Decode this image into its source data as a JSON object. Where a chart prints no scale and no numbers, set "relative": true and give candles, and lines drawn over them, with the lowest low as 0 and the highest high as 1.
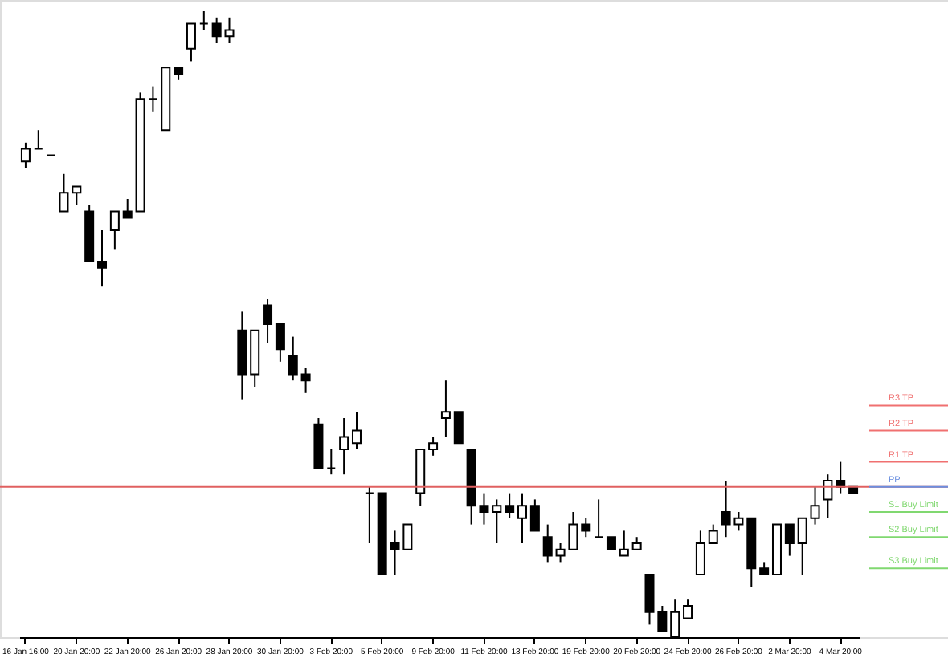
{
  "chart_data": {
    "type": "candlestick",
    "relative": true,
    "tick_labels": "x",
    "categories": [
      "16 Jan 16:00",
      null,
      null,
      null,
      "20 Jan 20:00",
      null,
      null,
      null,
      "22 Jan 20:00",
      null,
      null,
      null,
      "26 Jan 20:00",
      null,
      null,
      null,
      "28 Jan 20:00",
      null,
      null,
      null,
      "30 Jan 20:00",
      null,
      null,
      null,
      "3 Feb 20:00",
      null,
      null,
      null,
      "5 Feb 20:00",
      null,
      null,
      null,
      "9 Feb 20:00",
      null,
      null,
      null,
      "11 Feb 20:00",
      null,
      null,
      null,
      "13 Feb 20:00",
      null,
      null,
      null,
      "19 Feb 20:00",
      null,
      null,
      null,
      "20 Feb 20:00",
      null,
      null,
      null,
      "24 Feb 20:00",
      null,
      null,
      null,
      "26 Feb 20:00",
      null,
      null,
      null,
      "2 Mar 20:00",
      null,
      null,
      null,
      "4 Mar 20:00",
      null
    ],
    "ohlc": [
      [
        0.76,
        0.79,
        0.75,
        0.78
      ],
      [
        0.78,
        0.81,
        0.78,
        0.78
      ],
      [
        0.77,
        0.77,
        0.77,
        0.77
      ],
      [
        0.68,
        0.74,
        0.68,
        0.71
      ],
      [
        0.71,
        0.72,
        0.69,
        0.72
      ],
      [
        0.68,
        0.69,
        0.6,
        0.6
      ],
      [
        0.6,
        0.65,
        0.56,
        0.59
      ],
      [
        0.65,
        0.68,
        0.62,
        0.68
      ],
      [
        0.68,
        0.7,
        0.67,
        0.67
      ],
      [
        0.68,
        0.87,
        0.68,
        0.86
      ],
      [
        0.86,
        0.88,
        0.84,
        0.86
      ],
      [
        0.81,
        0.91,
        0.81,
        0.91
      ],
      [
        0.91,
        0.91,
        0.89,
        0.9
      ],
      [
        0.94,
        0.98,
        0.92,
        0.98
      ],
      [
        0.98,
        1.0,
        0.97,
        0.98
      ],
      [
        0.98,
        0.99,
        0.95,
        0.96
      ],
      [
        0.96,
        0.99,
        0.95,
        0.97
      ],
      [
        0.49,
        0.52,
        0.38,
        0.42
      ],
      [
        0.42,
        0.49,
        0.4,
        0.49
      ],
      [
        0.53,
        0.54,
        0.47,
        0.5
      ],
      [
        0.5,
        0.5,
        0.44,
        0.46
      ],
      [
        0.45,
        0.48,
        0.41,
        0.42
      ],
      [
        0.42,
        0.43,
        0.39,
        0.41
      ],
      [
        0.34,
        0.35,
        0.27,
        0.27
      ],
      [
        0.27,
        0.3,
        0.26,
        0.27
      ],
      [
        0.3,
        0.35,
        0.26,
        0.32
      ],
      [
        0.31,
        0.36,
        0.3,
        0.33
      ],
      [
        0.23,
        0.24,
        0.15,
        0.23
      ],
      [
        0.23,
        0.23,
        0.1,
        0.1
      ],
      [
        0.15,
        0.17,
        0.1,
        0.14
      ],
      [
        0.14,
        0.18,
        0.14,
        0.18
      ],
      [
        0.23,
        0.3,
        0.21,
        0.3
      ],
      [
        0.3,
        0.32,
        0.29,
        0.31
      ],
      [
        0.35,
        0.41,
        0.32,
        0.36
      ],
      [
        0.36,
        0.36,
        0.31,
        0.31
      ],
      [
        0.3,
        0.3,
        0.18,
        0.21
      ],
      [
        0.21,
        0.23,
        0.18,
        0.2
      ],
      [
        0.2,
        0.22,
        0.15,
        0.21
      ],
      [
        0.21,
        0.23,
        0.19,
        0.2
      ],
      [
        0.19,
        0.23,
        0.15,
        0.21
      ],
      [
        0.21,
        0.22,
        0.17,
        0.17
      ],
      [
        0.16,
        0.18,
        0.12,
        0.13
      ],
      [
        0.13,
        0.15,
        0.12,
        0.14
      ],
      [
        0.14,
        0.2,
        0.14,
        0.18
      ],
      [
        0.18,
        0.19,
        0.16,
        0.17
      ],
      [
        0.16,
        0.22,
        0.16,
        0.16
      ],
      [
        0.16,
        0.16,
        0.14,
        0.14
      ],
      [
        0.13,
        0.17,
        0.13,
        0.14
      ],
      [
        0.14,
        0.16,
        0.14,
        0.15
      ],
      [
        0.1,
        0.1,
        0.02,
        0.04
      ],
      [
        0.04,
        0.05,
        0.01,
        0.01
      ],
      [
        0.0,
        0.06,
        0.0,
        0.04
      ],
      [
        0.03,
        0.06,
        0.03,
        0.05
      ],
      [
        0.1,
        0.17,
        0.1,
        0.15
      ],
      [
        0.15,
        0.18,
        0.15,
        0.17
      ],
      [
        0.2,
        0.25,
        0.16,
        0.18
      ],
      [
        0.18,
        0.2,
        0.17,
        0.19
      ],
      [
        0.19,
        0.19,
        0.08,
        0.11
      ],
      [
        0.11,
        0.12,
        0.1,
        0.1
      ],
      [
        0.1,
        0.18,
        0.1,
        0.18
      ],
      [
        0.18,
        0.18,
        0.13,
        0.15
      ],
      [
        0.15,
        0.19,
        0.1,
        0.19
      ],
      [
        0.19,
        0.24,
        0.18,
        0.21
      ],
      [
        0.22,
        0.26,
        0.19,
        0.25
      ],
      [
        0.25,
        0.28,
        0.23,
        0.24
      ],
      [
        0.24,
        0.24,
        0.23,
        0.23
      ]
    ],
    "ref_lines": [
      {
        "axis": "y",
        "value": 0.24,
        "color": "#e06060"
      },
      {
        "axis": "y",
        "value": 0.37,
        "label": "R3 TP",
        "color": "#f07070"
      },
      {
        "axis": "y",
        "value": 0.33,
        "label": "R2 TP",
        "color": "#f07070"
      },
      {
        "axis": "y",
        "value": 0.28,
        "label": "R1 TP",
        "color": "#f07070"
      },
      {
        "axis": "y",
        "value": 0.24,
        "label": "PP",
        "color": "#6a8fe0"
      },
      {
        "axis": "y",
        "value": 0.2,
        "label": "S1 Buy Limit",
        "color": "#80d870"
      },
      {
        "axis": "y",
        "value": 0.16,
        "label": "S2 Buy Limit",
        "color": "#80d870"
      },
      {
        "axis": "y",
        "value": 0.11,
        "label": "S3 Buy Limit",
        "color": "#80d870"
      }
    ]
  }
}
